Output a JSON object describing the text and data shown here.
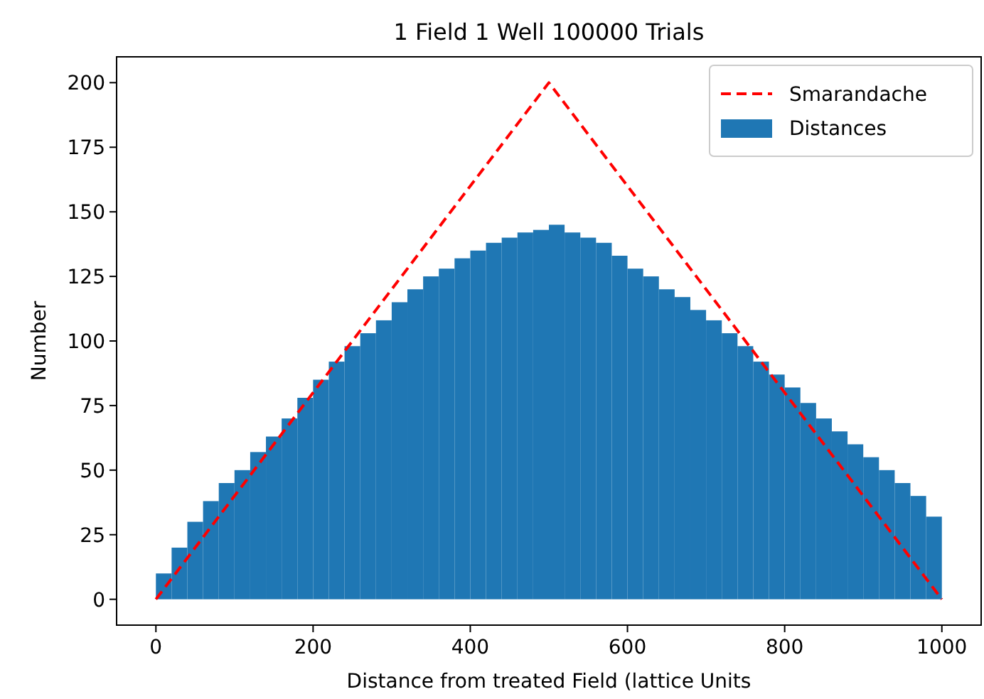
{
  "chart_data": {
    "type": "histogram",
    "title": "1 Field 1 Well 100000 Trials",
    "xlabel": "Distance from treated Field (lattice Units",
    "ylabel": "Number",
    "series": [
      {
        "name": "Smarandache",
        "type": "line",
        "x": [
          0,
          500,
          1000
        ],
        "values": [
          0,
          200,
          0
        ],
        "color": "#ff0000",
        "line_style": "dashed"
      },
      {
        "name": "Distances",
        "color": "#1f77b4",
        "bins": [
          0,
          20,
          40,
          60,
          80,
          100,
          120,
          140,
          160,
          180,
          200,
          220,
          240,
          260,
          280,
          300,
          320,
          340,
          360,
          380,
          400,
          420,
          440,
          460,
          480,
          500,
          520,
          540,
          560,
          580,
          600,
          620,
          640,
          660,
          680,
          700,
          720,
          740,
          760,
          780,
          800,
          820,
          840,
          860,
          880,
          900,
          920,
          940,
          960,
          980,
          1000
        ],
        "values": [
          10,
          20,
          30,
          38,
          45,
          50,
          57,
          63,
          70,
          78,
          85,
          92,
          98,
          103,
          108,
          115,
          120,
          125,
          128,
          132,
          135,
          138,
          140,
          142,
          143,
          145,
          142,
          140,
          138,
          133,
          128,
          125,
          120,
          117,
          112,
          108,
          103,
          98,
          92,
          87,
          82,
          76,
          70,
          65,
          60,
          55,
          50,
          45,
          40,
          32
        ]
      }
    ],
    "xlim": [
      -50,
      1050
    ],
    "ylim": [
      -10,
      210
    ],
    "xticks": [
      0,
      200,
      400,
      600,
      800,
      1000
    ],
    "yticks": [
      0,
      25,
      50,
      75,
      100,
      125,
      150,
      175,
      200
    ],
    "legend": "top right"
  }
}
